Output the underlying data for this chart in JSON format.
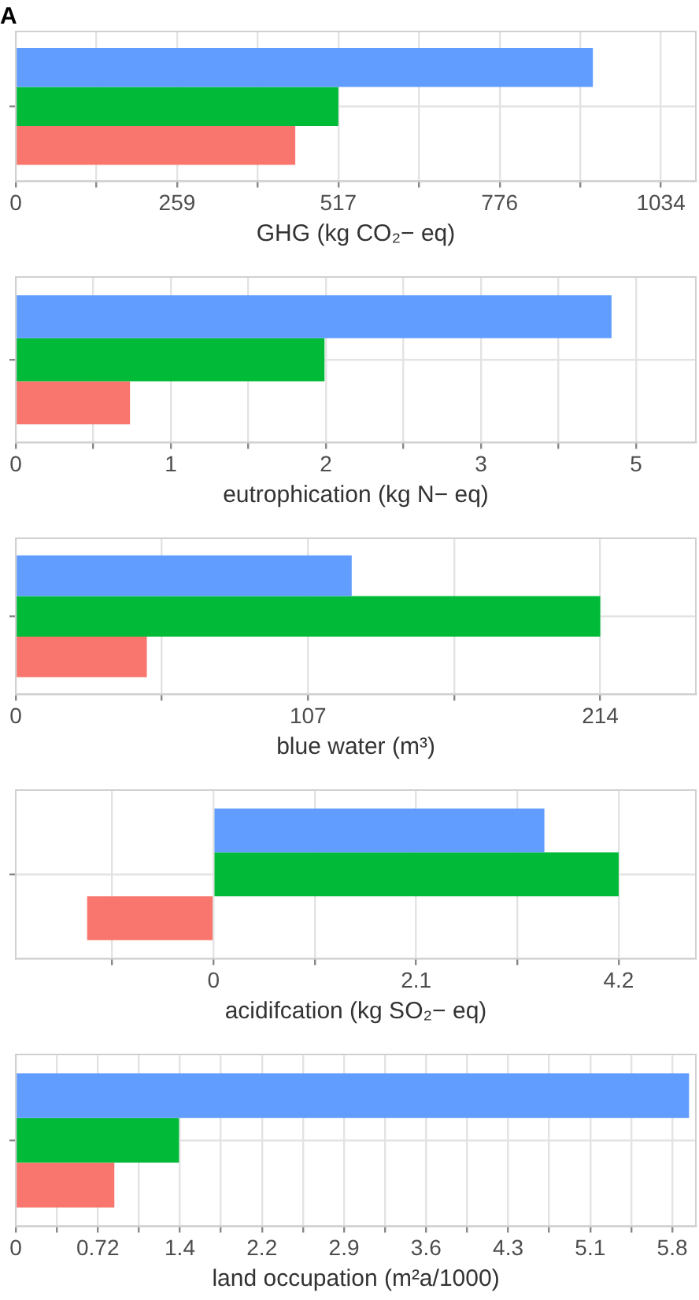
{
  "chart_data": [
    {
      "type": "bar",
      "title": "A",
      "orientation": "horizontal",
      "categories": [
        null
      ],
      "xlabel": "GHG (kg CO₂− eq)",
      "xlim": [
        0,
        1090
      ],
      "xticks": [
        0,
        {
          "value": 129.25,
          "label": null
        },
        {
          "value": 258.5,
          "label": "259"
        },
        {
          "value": 387.75,
          "label": null
        },
        517,
        {
          "value": 646.25,
          "label": null
        },
        {
          "value": 775.5,
          "label": "776"
        },
        {
          "value": 904.75,
          "label": null
        },
        1034
      ],
      "grid": true,
      "series": [
        {
          "color": "#619cff",
          "values": [
            925
          ]
        },
        {
          "color": "#00ba38",
          "values": [
            517
          ]
        },
        {
          "color": "#f8766d",
          "values": [
            448
          ]
        }
      ]
    },
    {
      "type": "bar",
      "orientation": "horizontal",
      "categories": [
        null
      ],
      "xlabel": "eutrophication (kg N− eq)",
      "xlim": [
        0,
        5
      ],
      "xticks": [
        {
          "value": 0,
          "label": "0"
        },
        {
          "value": 0.57,
          "label": null
        },
        {
          "value": 1.14,
          "label": "1"
        },
        {
          "value": 1.71,
          "label": null
        },
        {
          "value": 2.28,
          "label": "2"
        },
        {
          "value": 2.85,
          "label": null
        },
        {
          "value": 3.42,
          "label": "3"
        },
        {
          "value": 3.99,
          "label": null
        },
        {
          "value": 4.56,
          "label": "5"
        }
      ],
      "grid": true,
      "series": [
        {
          "color": "#619cff",
          "values": [
            4.38
          ]
        },
        {
          "color": "#00ba38",
          "values": [
            2.27
          ]
        },
        {
          "color": "#f8766d",
          "values": [
            0.84
          ]
        }
      ]
    },
    {
      "type": "bar",
      "orientation": "horizontal",
      "categories": [
        null
      ],
      "xlabel": "blue water (m³)",
      "xlim": [
        0,
        249
      ],
      "xticks": [
        0,
        {
          "value": 53.5,
          "label": null
        },
        107,
        {
          "value": 160.5,
          "label": null
        },
        214
      ],
      "grid": true,
      "series": [
        {
          "color": "#619cff",
          "values": [
            123
          ]
        },
        {
          "color": "#00ba38",
          "values": [
            214
          ]
        },
        {
          "color": "#f8766d",
          "values": [
            48
          ]
        }
      ]
    },
    {
      "type": "bar",
      "orientation": "horizontal",
      "categories": [
        null
      ],
      "xlabel": "acidifcation (kg SO₂− eq)",
      "xlim": [
        -2.05,
        5
      ],
      "xticks": [
        {
          "value": -1.05,
          "label": null
        },
        0,
        {
          "value": 1.05,
          "label": null
        },
        2.1,
        {
          "value": 3.15,
          "label": null
        },
        4.2
      ],
      "grid": true,
      "series": [
        {
          "color": "#619cff",
          "values": [
            3.43
          ]
        },
        {
          "color": "#00ba38",
          "values": [
            4.2
          ]
        },
        {
          "color": "#f8766d",
          "values": [
            -1.31
          ]
        }
      ]
    },
    {
      "type": "bar",
      "orientation": "horizontal",
      "categories": [
        null
      ],
      "xlabel": "land occupation (m²a/1000)",
      "xlim": [
        0,
        6
      ],
      "xticks": [
        0,
        {
          "value": 0.362,
          "label": null
        },
        {
          "value": 0.724,
          "label": "0.72"
        },
        {
          "value": 1.086,
          "label": null
        },
        {
          "value": 1.448,
          "label": "1.4"
        },
        {
          "value": 1.81,
          "label": null
        },
        {
          "value": 2.172,
          "label": "2.2"
        },
        {
          "value": 2.534,
          "label": null
        },
        {
          "value": 2.896,
          "label": "2.9"
        },
        {
          "value": 3.258,
          "label": null
        },
        {
          "value": 3.62,
          "label": "3.6"
        },
        {
          "value": 3.982,
          "label": null
        },
        {
          "value": 4.344,
          "label": "4.3"
        },
        {
          "value": 4.706,
          "label": null
        },
        {
          "value": 5.068,
          "label": "5.1"
        },
        {
          "value": 5.43,
          "label": null
        },
        {
          "value": 5.792,
          "label": "5.8"
        }
      ],
      "grid": true,
      "series": [
        {
          "color": "#619cff",
          "values": [
            5.94
          ]
        },
        {
          "color": "#00ba38",
          "values": [
            1.44
          ]
        },
        {
          "color": "#f8766d",
          "values": [
            0.87
          ]
        }
      ]
    }
  ]
}
